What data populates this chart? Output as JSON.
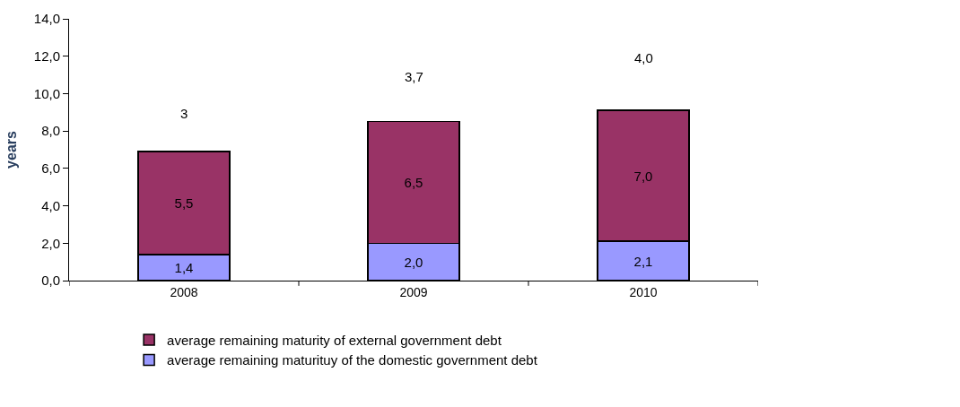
{
  "chart_data": {
    "type": "bar",
    "stacked": true,
    "ylabel": "years",
    "categories": [
      "2008",
      "2009",
      "2010"
    ],
    "series": [
      {
        "name": "average remaining maturituy of the domestic government debt",
        "color": "#9999ff",
        "values": [
          1.4,
          2.0,
          2.1
        ],
        "value_labels": [
          "1,4",
          "2,0",
          "2,1"
        ]
      },
      {
        "name": "average remaining maturity of external government debt",
        "color": "#993366",
        "values": [
          5.5,
          6.5,
          7.0
        ],
        "value_labels": [
          "5,5",
          "6,5",
          "7,0"
        ]
      }
    ],
    "ylim": [
      0,
      14
    ],
    "yticks": [
      {
        "value": 0,
        "label": "0,0"
      },
      {
        "value": 2,
        "label": "2,0"
      },
      {
        "value": 4,
        "label": "4,0"
      },
      {
        "value": 6,
        "label": "6,0"
      },
      {
        "value": 8,
        "label": "8,0"
      },
      {
        "value": 10,
        "label": "10,0"
      },
      {
        "value": 12,
        "label": "12,0"
      },
      {
        "value": 14,
        "label": "14,0"
      }
    ],
    "annotations": [
      "3",
      "3,7",
      "4,0"
    ],
    "legend": "bottom"
  }
}
